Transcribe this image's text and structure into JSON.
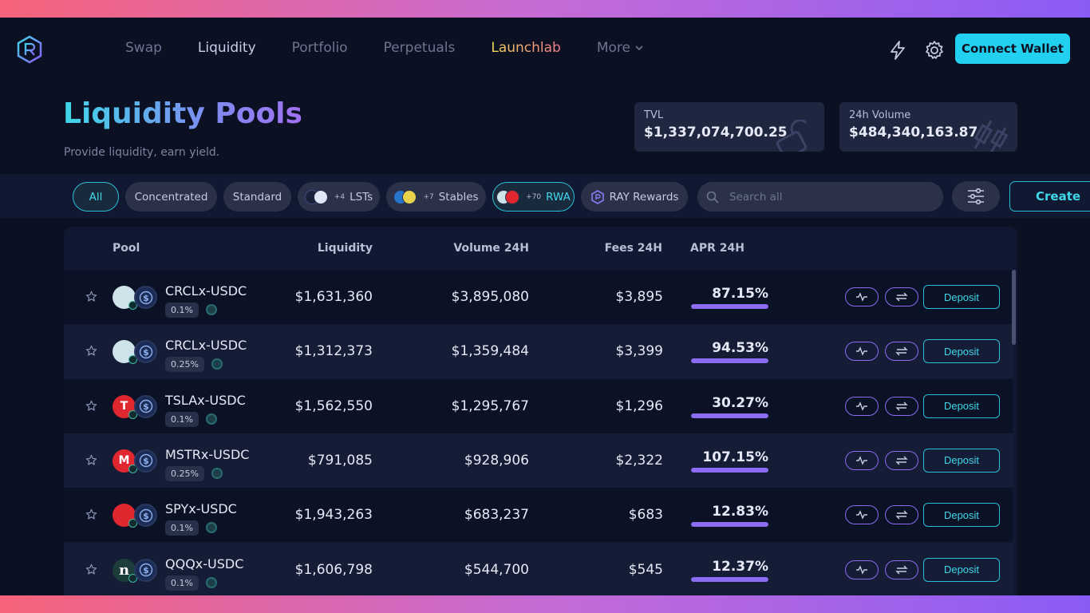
{
  "nav": {
    "items": [
      {
        "label": "Swap"
      },
      {
        "label": "Liquidity"
      },
      {
        "label": "Portfolio"
      },
      {
        "label": "Perpetuals"
      },
      {
        "label": "Launchlab"
      },
      {
        "label": "More"
      }
    ],
    "connect_label": "Connect Wallet"
  },
  "hero": {
    "title": "Liquidity Pools",
    "subtitle": "Provide liquidity, earn yield."
  },
  "stats": {
    "tvl_label": "TVL",
    "tvl_value": "$1,337,074,700.25",
    "volume_label": "24h Volume",
    "volume_value": "$484,340,163.87"
  },
  "filters": {
    "all": "All",
    "concentrated": "Concentrated",
    "standard": "Standard",
    "lsts": "LSTs",
    "lsts_more": "+4",
    "stables": "Stables",
    "stables_more": "+7",
    "rwa": "RWA",
    "rwa_more": "+70",
    "ray_rewards": "RAY Rewards",
    "search_placeholder": "Search all",
    "create": "Create"
  },
  "table": {
    "headers": {
      "pool": "Pool",
      "liquidity": "Liquidity",
      "volume": "Volume 24H",
      "fees": "Fees 24H",
      "apr": "APR 24H"
    },
    "deposit_label": "Deposit",
    "rows": [
      {
        "pair": "CRCLx-USDC",
        "fee": "0.1%",
        "liquidity": "$1,631,360",
        "volume": "$3,895,080",
        "fees": "$3,895",
        "apr": "87.15%",
        "apr_fill": 1.0
      },
      {
        "pair": "CRCLx-USDC",
        "fee": "0.25%",
        "liquidity": "$1,312,373",
        "volume": "$1,359,484",
        "fees": "$3,399",
        "apr": "94.53%",
        "apr_fill": 1.0
      },
      {
        "pair": "TSLAx-USDC",
        "fee": "0.1%",
        "liquidity": "$1,562,550",
        "volume": "$1,295,767",
        "fees": "$1,296",
        "apr": "30.27%",
        "apr_fill": 1.0
      },
      {
        "pair": "MSTRx-USDC",
        "fee": "0.25%",
        "liquidity": "$791,085",
        "volume": "$928,906",
        "fees": "$2,322",
        "apr": "107.15%",
        "apr_fill": 1.0
      },
      {
        "pair": "SPYx-USDC",
        "fee": "0.1%",
        "liquidity": "$1,943,263",
        "volume": "$683,237",
        "fees": "$683",
        "apr": "12.83%",
        "apr_fill": 1.0
      },
      {
        "pair": "QQQx-USDC",
        "fee": "0.1%",
        "liquidity": "$1,606,798",
        "volume": "$544,700",
        "fees": "$545",
        "apr": "12.37%",
        "apr_fill": 1.0
      }
    ]
  },
  "token_icons": {
    "row0": {
      "name": "crcl-icon",
      "color": "#cfe3ea",
      "glyph": ""
    },
    "row1": {
      "name": "crcl-icon",
      "color": "#cfe3ea",
      "glyph": ""
    },
    "row2": {
      "name": "tesla-icon",
      "color": "#e0262f",
      "glyph": ""
    },
    "row3": {
      "name": "mstr-icon",
      "color": "#e0262f",
      "glyph": ""
    },
    "row4": {
      "name": "spy-icon",
      "color": "#e0262f",
      "glyph": ""
    },
    "row5": {
      "name": "qqq-icon",
      "color": "#1d3c3c",
      "glyph": ""
    }
  }
}
